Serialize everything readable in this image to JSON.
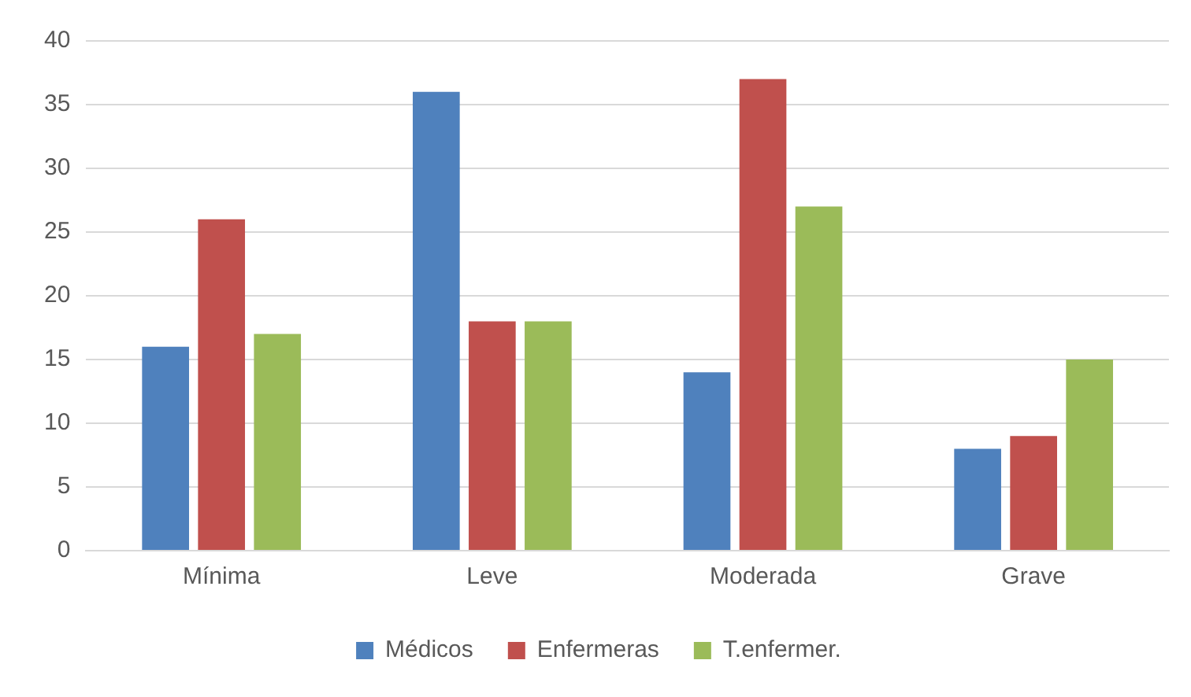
{
  "chart_data": {
    "type": "bar",
    "categories": [
      "Mínima",
      "Leve",
      "Moderada",
      "Grave"
    ],
    "series": [
      {
        "name": "Médicos",
        "color": "#4f81bd",
        "values": [
          16,
          36,
          14,
          8
        ]
      },
      {
        "name": "Enfermeras",
        "color": "#c0504d",
        "values": [
          26,
          18,
          37,
          9
        ]
      },
      {
        "name": "T.enfermer.",
        "color": "#9bbb59",
        "values": [
          17,
          18,
          27,
          15
        ]
      }
    ],
    "ylim": [
      0,
      40
    ],
    "yticks": [
      0,
      5,
      10,
      15,
      20,
      25,
      30,
      35,
      40
    ],
    "grid": "y",
    "legend": "bottom"
  }
}
